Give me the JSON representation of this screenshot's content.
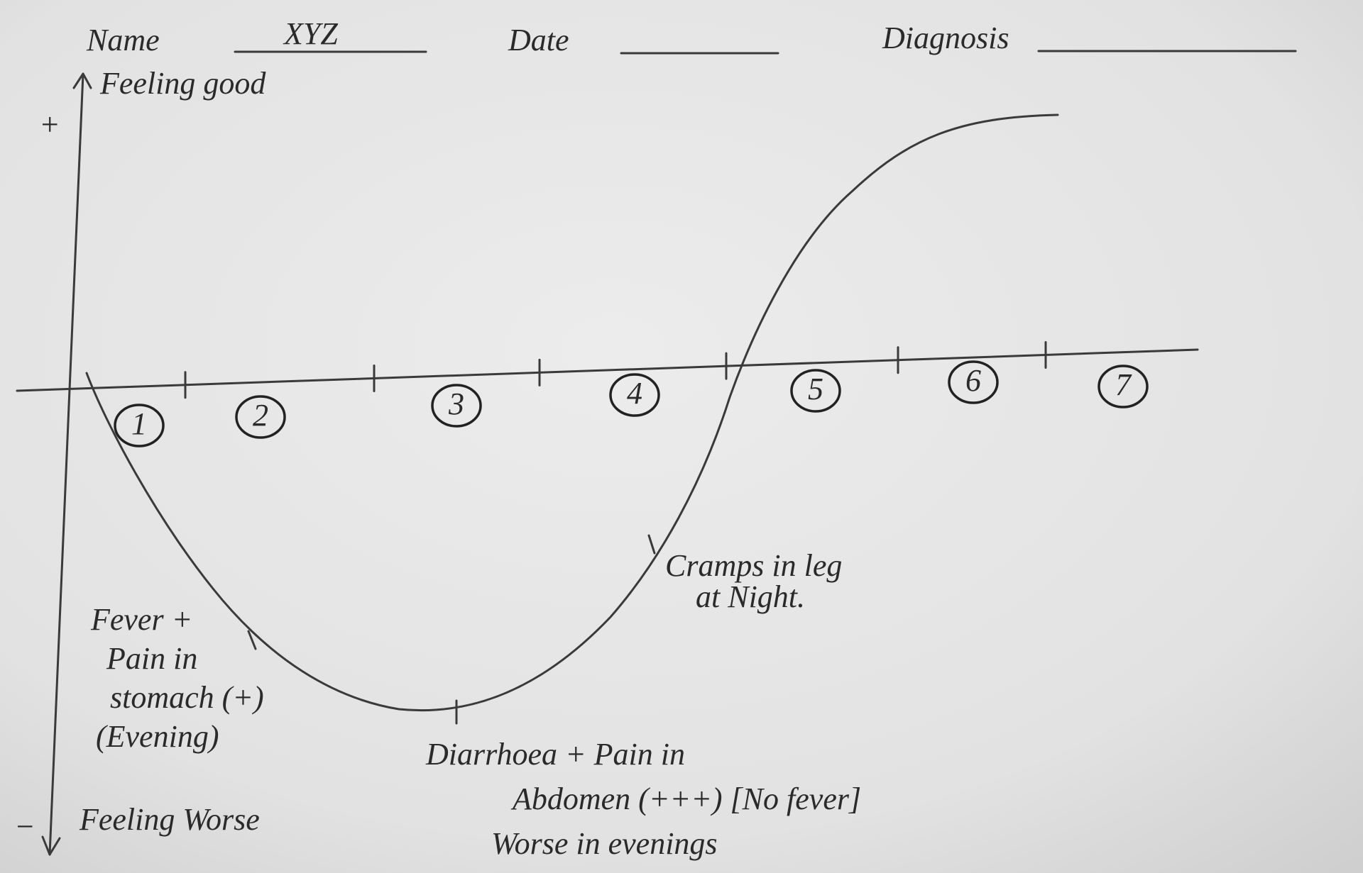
{
  "header": {
    "name_label": "Name",
    "name_value": "XYZ",
    "date_label": "Date",
    "diagnosis_label": "Diagnosis"
  },
  "axis": {
    "top_sign": "+",
    "top_label": "Feeling good",
    "bottom_sign": "−",
    "bottom_label": "Feeling Worse"
  },
  "days": [
    "1",
    "2",
    "3",
    "4",
    "5",
    "6",
    "7"
  ],
  "notes": [
    {
      "lines": [
        "Fever +",
        "Pain in",
        "stomach (+)",
        "(Evening)"
      ]
    },
    {
      "lines": [
        "Diarrhoea + Pain in",
        "Abdomen (+++) [No fever]",
        "Worse in evenings"
      ]
    },
    {
      "lines": [
        "Cramps in leg",
        "at Night."
      ]
    }
  ]
}
